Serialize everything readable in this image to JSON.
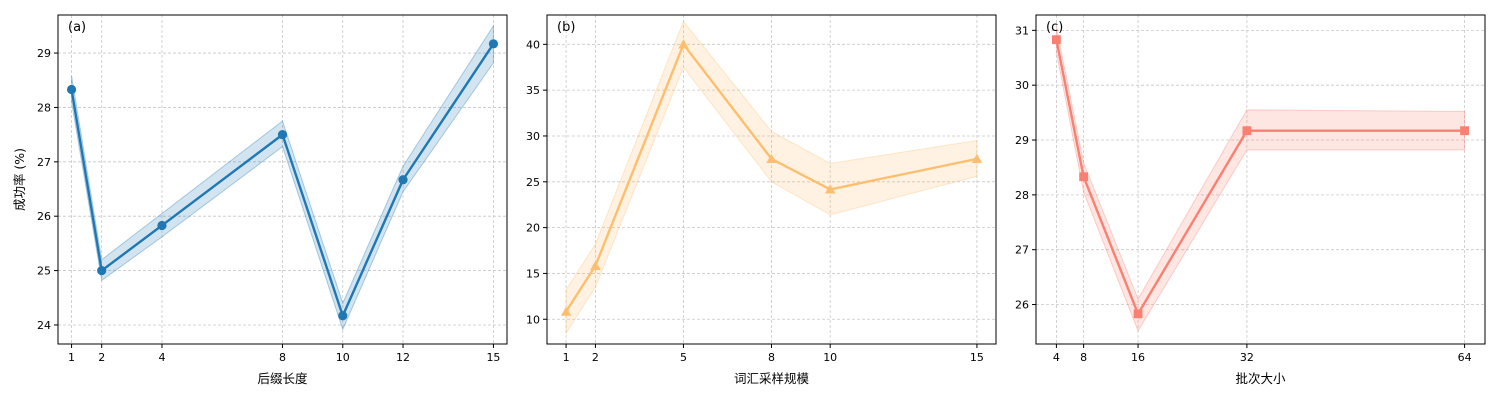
{
  "chart_data": [
    {
      "type": "line",
      "panel_label": "(a)",
      "xlabel": "后缀长度",
      "ylabel": "成功率 (%)",
      "x": [
        1,
        2,
        4,
        8,
        10,
        12,
        15
      ],
      "xticks": [
        1,
        2,
        4,
        8,
        10,
        12,
        15
      ],
      "xlim": [
        0.55,
        15.45
      ],
      "ylim": [
        23.65,
        29.7
      ],
      "yticks": [
        24,
        25,
        26,
        27,
        28,
        29
      ],
      "grid": true,
      "marker": "circle",
      "color": "#1f77b4",
      "series": [
        {
          "values": [
            28.33,
            25.0,
            25.83,
            27.5,
            24.17,
            26.67,
            29.17
          ],
          "band_low": [
            28.1,
            24.82,
            25.62,
            27.28,
            23.92,
            26.45,
            28.82
          ],
          "band_high": [
            28.58,
            25.2,
            26.05,
            27.75,
            24.4,
            26.92,
            29.5
          ]
        }
      ]
    },
    {
      "type": "line",
      "panel_label": "(b)",
      "xlabel": "词汇采样规模",
      "ylabel": "",
      "x": [
        1,
        2,
        5,
        8,
        10,
        15
      ],
      "xticks": [
        1,
        2,
        5,
        8,
        10,
        15
      ],
      "xlim": [
        0.35,
        15.65
      ],
      "ylim": [
        7.3,
        43.2
      ],
      "yticks": [
        10,
        15,
        20,
        25,
        30,
        35,
        40
      ],
      "grid": true,
      "marker": "triangle",
      "color": "#fdbf6f",
      "series": [
        {
          "values": [
            10.83,
            15.83,
            40.0,
            27.5,
            24.17,
            27.5
          ],
          "band_low": [
            8.5,
            13.5,
            37.5,
            25.0,
            21.4,
            25.6
          ],
          "band_high": [
            13.2,
            18.2,
            42.5,
            30.5,
            27.0,
            29.5
          ]
        }
      ]
    },
    {
      "type": "line",
      "panel_label": "(c)",
      "xlabel": "批次大小",
      "ylabel": "",
      "x": [
        4,
        8,
        16,
        32,
        64
      ],
      "xticks": [
        4,
        8,
        16,
        32,
        64
      ],
      "xlim": [
        1.0,
        67.0
      ],
      "ylim": [
        25.28,
        31.28
      ],
      "yticks": [
        26,
        27,
        28,
        29,
        30,
        31
      ],
      "grid": true,
      "marker": "square",
      "color": "#fa8072",
      "series": [
        {
          "values": [
            30.83,
            28.33,
            25.83,
            29.17,
            29.17
          ],
          "band_low": [
            30.6,
            28.05,
            25.52,
            28.82,
            28.82
          ],
          "band_high": [
            31.05,
            28.58,
            26.1,
            29.55,
            29.52
          ]
        }
      ]
    }
  ]
}
